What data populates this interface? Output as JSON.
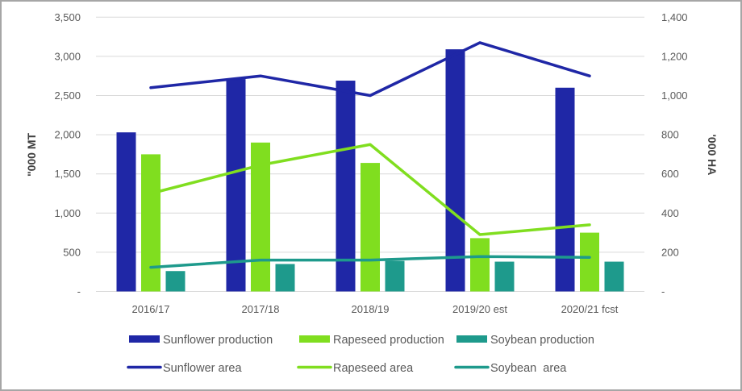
{
  "chart_data": {
    "type": "bar",
    "combo": "bar+line (dual axis)",
    "title": "",
    "categories": [
      "2016/17",
      "2017/18",
      "2018/19",
      "2019/20 est",
      "2020/21 fcst"
    ],
    "ylabel": "\"000 MT",
    "y2label": "'000 HA",
    "ylim": [
      0,
      3500
    ],
    "y2lim": [
      0,
      1400
    ],
    "yticks": [
      "-",
      "500",
      "1,000",
      "1,500",
      "2,000",
      "2,500",
      "3,000",
      "3,500"
    ],
    "y2ticks": [
      "-",
      "200",
      "400",
      "600",
      "800",
      "1,000",
      "1,200",
      "1,400"
    ],
    "grid": true,
    "legend_position": "bottom",
    "series": [
      {
        "name": "Sunflower production",
        "kind": "bar",
        "axis": "left",
        "color": "#1f27a6",
        "values": [
          2030,
          2710,
          2690,
          3090,
          2600
        ]
      },
      {
        "name": "Rapeseed production",
        "kind": "bar",
        "axis": "left",
        "color": "#80de1f",
        "values": [
          1750,
          1900,
          1640,
          680,
          750
        ]
      },
      {
        "name": "Soybean production",
        "kind": "bar",
        "axis": "left",
        "color": "#1e9a8c",
        "values": [
          260,
          350,
          390,
          380,
          380
        ]
      },
      {
        "name": "Sunflower area",
        "kind": "line",
        "axis": "right",
        "color": "#1f27a6",
        "values": [
          1040,
          1100,
          1000,
          1270,
          1100
        ]
      },
      {
        "name": "Rapeseed area",
        "kind": "line",
        "axis": "right",
        "color": "#80de1f",
        "values": [
          500,
          645,
          750,
          290,
          340
        ]
      },
      {
        "name": "Soybean  area",
        "kind": "line",
        "axis": "right",
        "color": "#1e9a8c",
        "values": [
          123,
          160,
          160,
          178,
          174
        ]
      }
    ]
  }
}
